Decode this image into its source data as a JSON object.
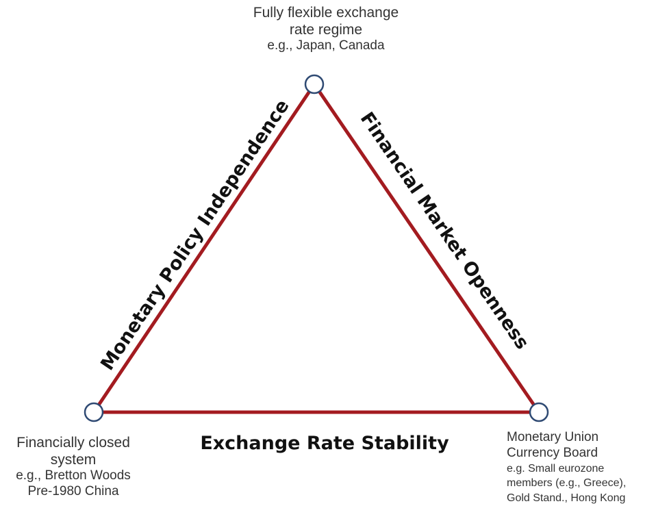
{
  "diagram": {
    "colors": {
      "edge": "#a31b20",
      "node_stroke": "#2f4a73",
      "node_fill": "#ffffff"
    },
    "sides": {
      "left": "Monetary Policy Independence",
      "right": "Financial Market Openness",
      "bottom": "Exchange Rate Stability"
    },
    "vertices": {
      "top": {
        "line1": "Fully flexible exchange",
        "line2": "rate regime",
        "example": "e.g., Japan, Canada"
      },
      "bottom_left": {
        "line1": "Financially closed",
        "line2": "system",
        "example1": "e.g., Bretton Woods",
        "example2": "Pre-1980 China"
      },
      "bottom_right": {
        "line1": "Monetary Union",
        "line2": "Currency Board",
        "example1": "e.g. Small eurozone",
        "example2": "members (e.g., Greece),",
        "example3": "Gold Stand., Hong Kong"
      }
    }
  }
}
